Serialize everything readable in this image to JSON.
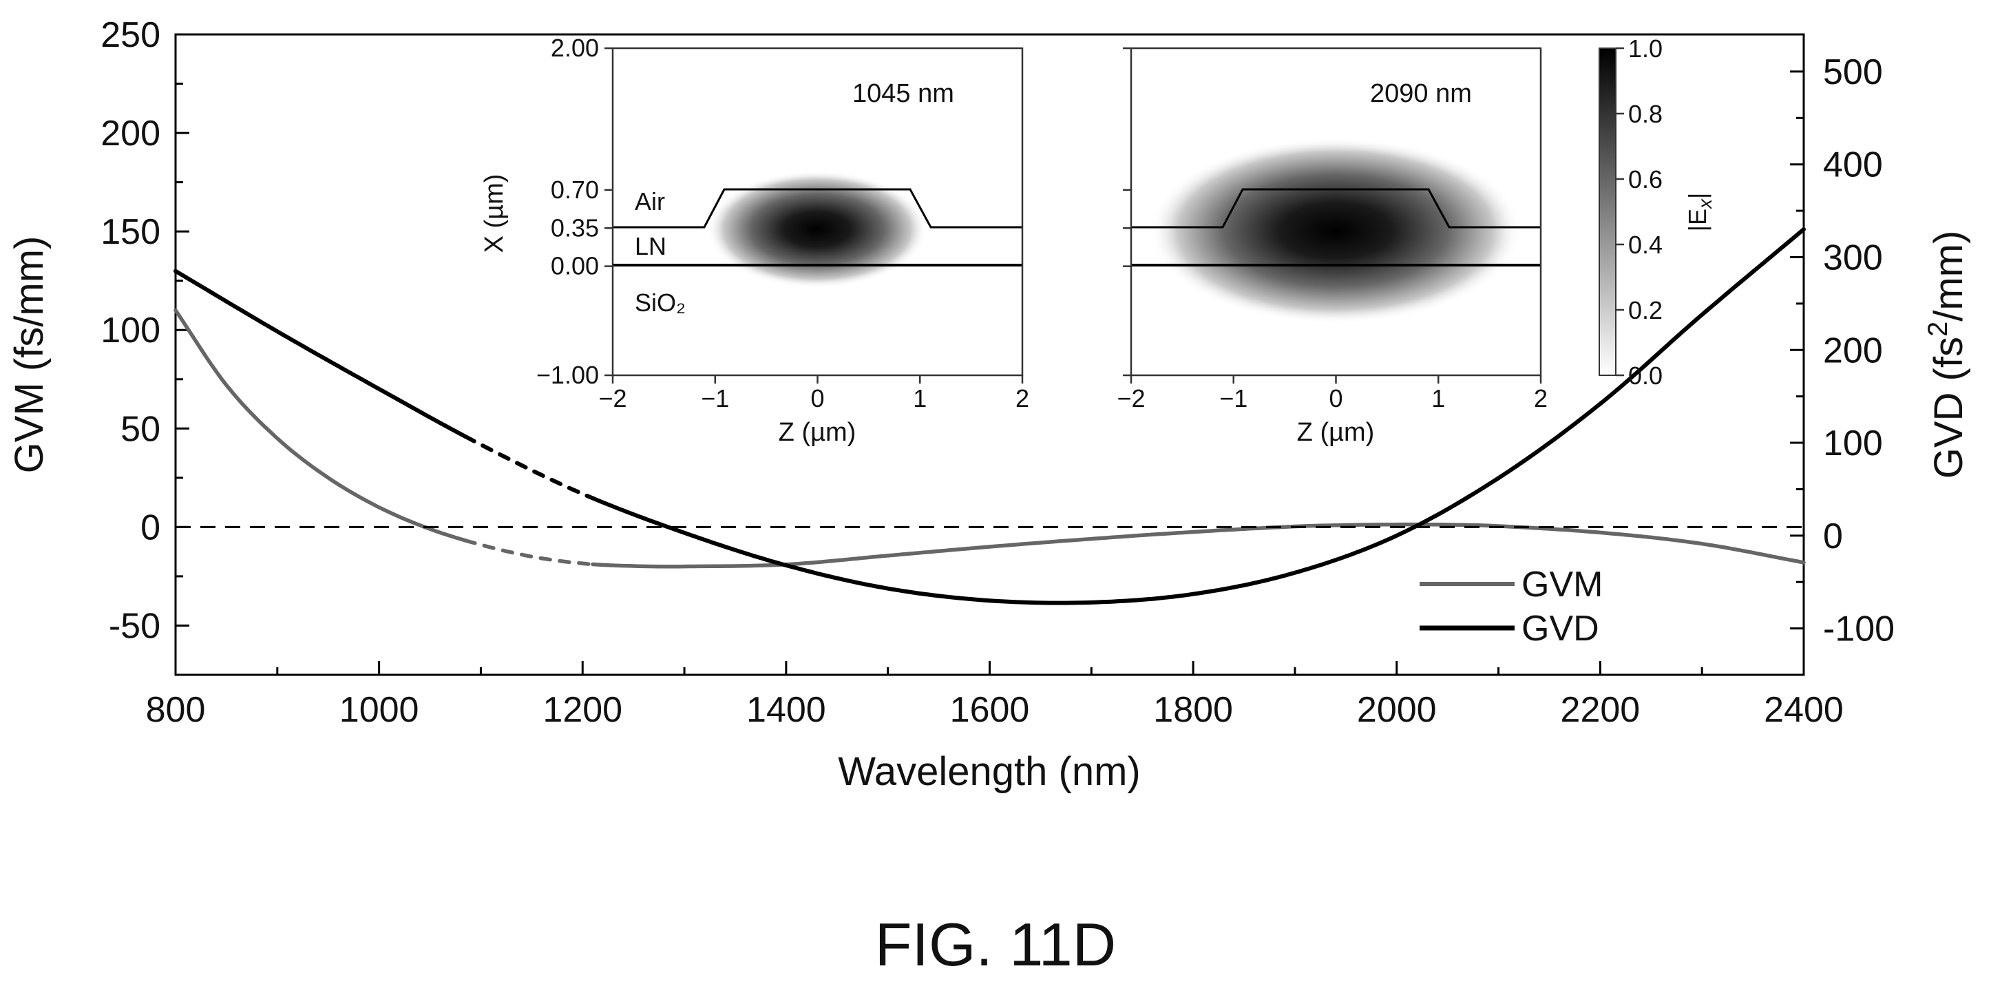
{
  "figure_label": "FIG. 11D",
  "chart_data": [
    {
      "type": "line",
      "xlabel": "Wavelength (nm)",
      "ylabel": "GVM (fs/mm)",
      "y2label": "GVD (fs²/mm)",
      "xlim": [
        800,
        2400
      ],
      "ylim": [
        -75,
        250
      ],
      "y2lim": [
        -150,
        540
      ],
      "xticks": [
        800,
        1000,
        1200,
        1400,
        1600,
        1800,
        2000,
        2200,
        2400
      ],
      "yticks": [
        -50,
        0,
        50,
        100,
        150,
        200,
        250
      ],
      "y2ticks": [
        -100,
        0,
        100,
        200,
        300,
        400,
        500
      ],
      "grid": false,
      "legend_position": "bottom-right",
      "reference_line": {
        "axis": "y",
        "value": 0,
        "style": "dashed"
      },
      "series": [
        {
          "name": "GVM",
          "axis": "left",
          "color": "#666666",
          "x": [
            800,
            850,
            900,
            950,
            1000,
            1050,
            1100,
            1150,
            1200,
            1250,
            1300,
            1400,
            1500,
            1600,
            1700,
            1800,
            1900,
            1950,
            2000,
            2050,
            2100,
            2200,
            2300,
            2400
          ],
          "y": [
            110,
            72,
            45,
            25,
            10,
            -1,
            -9,
            -15,
            -18.5,
            -19.8,
            -20,
            -19,
            -14.5,
            -10,
            -6,
            -2.5,
            0.3,
            1,
            1.3,
            1.2,
            0.5,
            -2.8,
            -8.5,
            -18
          ],
          "dashed_range": [
            1085,
            1210
          ]
        },
        {
          "name": "GVD",
          "axis": "right",
          "color": "#000000",
          "x": [
            800,
            900,
            1000,
            1100,
            1200,
            1300,
            1400,
            1500,
            1600,
            1700,
            1800,
            1900,
            2000,
            2100,
            2200,
            2300,
            2400
          ],
          "y": [
            285,
            220,
            158,
            98,
            45,
            3,
            -32,
            -57,
            -70,
            -72,
            -63,
            -40,
            0,
            62,
            142,
            238,
            330
          ],
          "dashed_range": [
            1085,
            1210
          ]
        }
      ]
    },
    {
      "type": "heatmap",
      "label": "1045 nm",
      "xlabel": "Z (µm)",
      "ylabel": "X (µm)",
      "xlim": [
        -2,
        2
      ],
      "ylim": [
        -1,
        2
      ],
      "xticks": [
        -2,
        -1,
        0,
        1,
        2
      ],
      "yticks": [
        "-1.00",
        "0.00",
        "0.35",
        "0.70",
        "2.00"
      ],
      "layers": [
        "Air",
        "LN",
        "SiO₂"
      ]
    },
    {
      "type": "heatmap",
      "label": "2090 nm",
      "xlabel": "Z (µm)",
      "xlim": [
        -2,
        2
      ],
      "ylim": [
        -1,
        2
      ],
      "xticks": [
        -2,
        -1,
        0,
        1,
        2
      ]
    },
    {
      "type": "colorbar",
      "label": "|E",
      "label_sub": "x",
      "range": [
        0,
        1
      ],
      "ticks": [
        "0.0",
        "0.2",
        "0.4",
        "0.6",
        "0.8",
        "1.0"
      ]
    }
  ]
}
